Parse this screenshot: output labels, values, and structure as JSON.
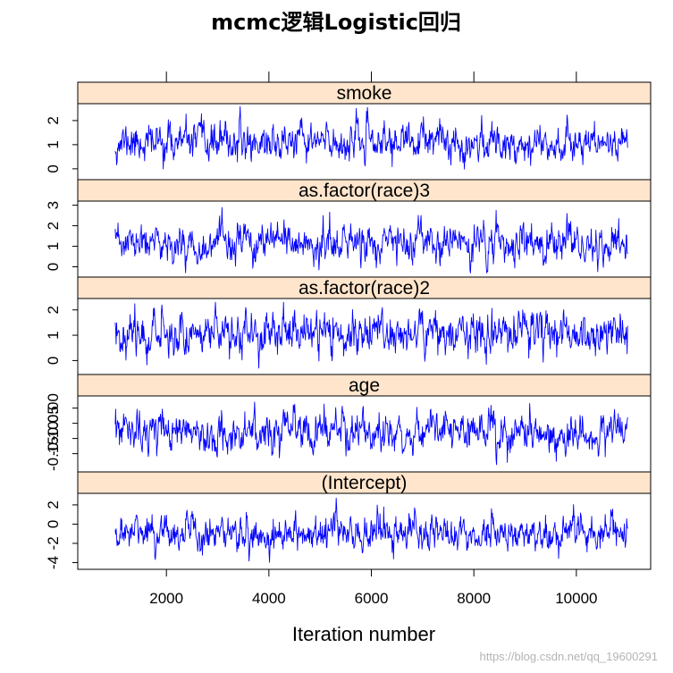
{
  "chart_data": {
    "type": "line",
    "title": "mcmc逻辑Logistic回归",
    "xlabel": "Iteration number",
    "ylabel": "",
    "xlim": [
      270,
      11450
    ],
    "x_ticks": [
      2000,
      4000,
      6000,
      8000,
      10000
    ],
    "x_tick_labels": [
      "2000",
      "4000",
      "6000",
      "8000",
      "10000"
    ],
    "iterations": {
      "start": 1001,
      "end": 11000
    },
    "line_color": "#0000ff",
    "strip_color": "#ffe5cc",
    "panels": [
      {
        "name": "smoke",
        "ylim": [
          -0.45,
          2.7
        ],
        "y_ticks": [
          0,
          1,
          2
        ],
        "y_tick_labels": [
          "0",
          "1",
          "2"
        ],
        "trace": {
          "mean": 1.1,
          "sd": 0.38,
          "min": -0.35,
          "max": 2.75,
          "rho": 0.55,
          "seed": 11
        }
      },
      {
        "name": "as.factor(race)3",
        "ylim": [
          -0.5,
          3.2
        ],
        "y_ticks": [
          0,
          1,
          2,
          3
        ],
        "y_tick_labels": [
          "0",
          "1",
          "2",
          "3"
        ],
        "trace": {
          "mean": 1.1,
          "sd": 0.45,
          "min": -0.3,
          "max": 2.9,
          "rho": 0.55,
          "seed": 23
        }
      },
      {
        "name": "as.factor(race)2",
        "ylim": [
          -0.55,
          2.45
        ],
        "y_ticks": [
          0,
          1,
          2
        ],
        "y_tick_labels": [
          "0",
          "1",
          "2"
        ],
        "trace": {
          "mean": 1.1,
          "sd": 0.42,
          "min": -0.3,
          "max": 2.3,
          "rho": 0.55,
          "seed": 37
        }
      },
      {
        "name": "age",
        "ylim": [
          -0.21,
          0.04
        ],
        "y_ticks": [
          -0.15,
          -0.1,
          -0.05,
          0.0
        ],
        "y_tick_labels": [
          "-0.15",
          "-0.10",
          "-0.05",
          "0.00"
        ],
        "trace": {
          "mean": -0.08,
          "sd": 0.032,
          "min": -0.19,
          "max": 0.03,
          "rho": 0.55,
          "seed": 53
        }
      },
      {
        "name": "(Intercept)",
        "ylim": [
          -4.7,
          3.2
        ],
        "y_ticks": [
          -4,
          -2,
          0,
          2
        ],
        "y_tick_labels": [
          "-4",
          "-2",
          "0",
          "2"
        ],
        "trace": {
          "mean": -0.9,
          "sd": 0.95,
          "min": -4.2,
          "max": 2.7,
          "rho": 0.55,
          "seed": 71
        }
      }
    ]
  },
  "watermark": "https://blog.csdn.net/qq_19600291"
}
